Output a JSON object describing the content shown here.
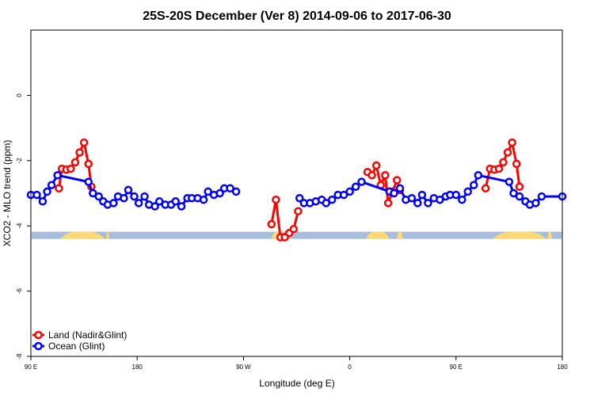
{
  "chart_data": {
    "type": "line",
    "title": "25S-20S December (Ver 8)   2014-09-06 to 2017-06-30",
    "xlabel": "Longitude (deg E)",
    "ylabel": "XCO2 - MLO trend (ppm)",
    "xlim": [
      90,
      450
    ],
    "ylim": [
      -8,
      2
    ],
    "grid": false,
    "legend_position": "bottom-left",
    "x_ticks": [
      {
        "value": 90,
        "label": "90 E"
      },
      {
        "value": 162,
        "label": "180"
      },
      {
        "value": 234,
        "label": "90 W"
      },
      {
        "value": 306,
        "label": "0"
      },
      {
        "value": 378,
        "label": "90 E"
      },
      {
        "value": 450,
        "label": "180"
      }
    ],
    "y_ticks": [
      {
        "value": -8,
        "label": "-8"
      },
      {
        "value": -6,
        "label": "-6"
      },
      {
        "value": -4,
        "label": "-4"
      },
      {
        "value": -2,
        "label": "-2"
      },
      {
        "value": 0,
        "label": "0"
      }
    ],
    "land_mask": {
      "ocean_color": "#a6bddb",
      "land_color": "#fed976",
      "y_range": [
        -4.4,
        -4.18
      ],
      "land_segments": [
        [
          110,
          140
        ],
        [
          141,
          143
        ],
        [
          253,
          262
        ],
        [
          317,
          333
        ],
        [
          338,
          342
        ],
        [
          403,
          439
        ],
        [
          440,
          443
        ]
      ]
    },
    "series": [
      {
        "name": "Land (Nadir&Glint)",
        "color": "#ff0000",
        "segments": [
          [
            [
              109,
              -2.85
            ],
            [
              111,
              -2.25
            ],
            [
              114,
              -2.28
            ],
            [
              117,
              -2.25
            ],
            [
              120,
              -2.05
            ],
            [
              123,
              -1.75
            ],
            [
              126,
              -1.45
            ],
            [
              129,
              -2.1
            ],
            [
              131,
              -2.8
            ]
          ],
          [
            [
              253,
              -3.95
            ],
            [
              256,
              -3.2
            ],
            [
              259,
              -4.35
            ],
            [
              262,
              -4.35
            ],
            [
              265,
              -4.22
            ],
            [
              268,
              -4.1
            ],
            [
              271,
              -3.55
            ]
          ],
          [
            [
              318,
              -2.35
            ],
            [
              321,
              -2.45
            ],
            [
              324,
              -2.15
            ],
            [
              327,
              -2.75
            ],
            [
              330,
              -2.45
            ],
            [
              332,
              -3.3
            ],
            [
              335,
              -2.95
            ],
            [
              338,
              -2.6
            ],
            [
              340,
              -2.9
            ]
          ],
          [
            [
              398,
              -2.85
            ],
            [
              401,
              -2.25
            ],
            [
              404,
              -2.28
            ],
            [
              407,
              -2.25
            ],
            [
              410,
              -2.05
            ],
            [
              413,
              -1.75
            ],
            [
              416,
              -1.45
            ],
            [
              419,
              -2.1
            ],
            [
              421,
              -2.8
            ]
          ]
        ]
      },
      {
        "name": "Ocean (Glint)",
        "color": "#0000ff",
        "segments": [
          [
            [
              90,
              -3.05
            ],
            [
              94,
              -3.05
            ],
            [
              98,
              -3.25
            ],
            [
              101,
              -2.95
            ],
            [
              104,
              -2.75
            ],
            [
              108,
              -2.45
            ],
            [
              129,
              -2.65
            ],
            [
              132,
              -3.0
            ],
            [
              136,
              -3.1
            ],
            [
              139,
              -3.25
            ],
            [
              142,
              -3.35
            ],
            [
              146,
              -3.3
            ],
            [
              149,
              -3.1
            ],
            [
              153,
              -3.15
            ],
            [
              156,
              -2.9
            ],
            [
              160,
              -3.1
            ],
            [
              163,
              -3.3
            ],
            [
              167,
              -3.1
            ],
            [
              170,
              -3.35
            ],
            [
              174,
              -3.4
            ],
            [
              177,
              -3.25
            ],
            [
              181,
              -3.35
            ],
            [
              185,
              -3.35
            ],
            [
              188,
              -3.25
            ],
            [
              192,
              -3.4
            ],
            [
              196,
              -3.15
            ],
            [
              199,
              -3.15
            ],
            [
              203,
              -3.15
            ],
            [
              207,
              -3.2
            ],
            [
              210,
              -2.95
            ],
            [
              214,
              -3.05
            ],
            [
              218,
              -3.0
            ],
            [
              221,
              -2.85
            ],
            [
              225,
              -2.85
            ],
            [
              229,
              -2.95
            ]
          ],
          [
            [
              272,
              -3.15
            ],
            [
              275,
              -3.3
            ],
            [
              279,
              -3.3
            ],
            [
              283,
              -3.25
            ],
            [
              287,
              -3.2
            ],
            [
              290,
              -3.3
            ],
            [
              294,
              -3.2
            ],
            [
              298,
              -3.05
            ],
            [
              302,
              -3.05
            ],
            [
              306,
              -2.95
            ],
            [
              310,
              -2.8
            ],
            [
              314,
              -2.65
            ],
            [
              333,
              -2.95
            ],
            [
              336,
              -3.0
            ],
            [
              340,
              -2.85
            ],
            [
              344,
              -3.2
            ],
            [
              348,
              -3.15
            ],
            [
              352,
              -3.3
            ],
            [
              355,
              -3.05
            ],
            [
              359,
              -3.3
            ],
            [
              363,
              -3.15
            ],
            [
              367,
              -3.2
            ],
            [
              371,
              -3.1
            ],
            [
              374,
              -3.05
            ],
            [
              378,
              -3.05
            ],
            [
              382,
              -3.2
            ],
            [
              386,
              -2.95
            ],
            [
              390,
              -2.75
            ],
            [
              393,
              -2.45
            ],
            [
              414,
              -2.65
            ],
            [
              417,
              -3.0
            ],
            [
              421,
              -3.1
            ],
            [
              425,
              -3.25
            ],
            [
              428,
              -3.35
            ],
            [
              432,
              -3.3
            ],
            [
              436,
              -3.1
            ],
            [
              450,
              -3.1
            ]
          ]
        ]
      }
    ]
  }
}
